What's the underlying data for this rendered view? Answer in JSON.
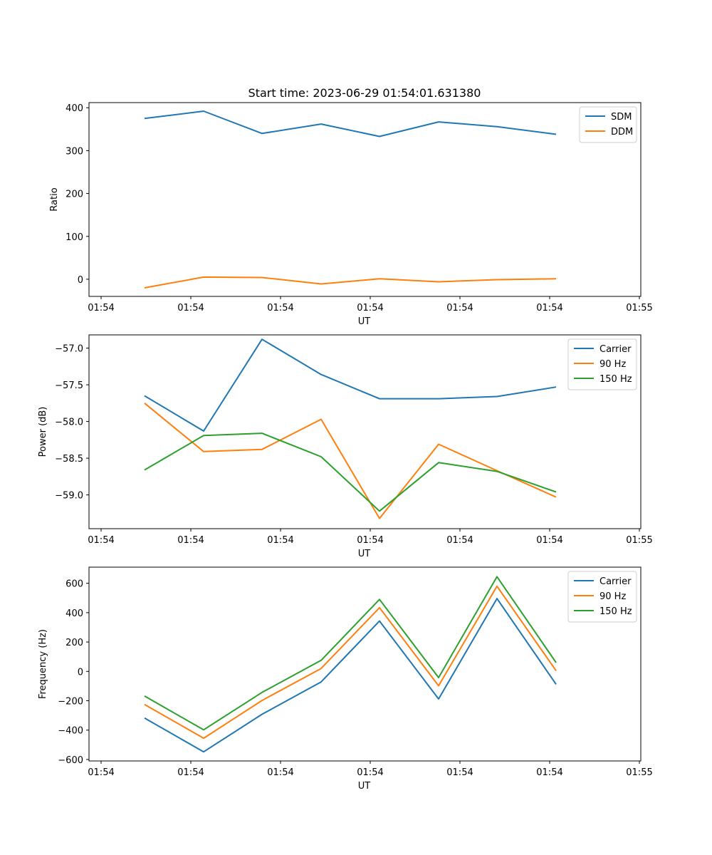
{
  "figure": {
    "title": "Start time: 2023-06-29 01:54:01.631380"
  },
  "chart_data": [
    {
      "type": "line",
      "xlabel": "UT",
      "ylabel": "Ratio",
      "x_tick_labels": [
        "01:54",
        "01:54",
        "01:54",
        "01:54",
        "01:54",
        "01:54",
        "01:55"
      ],
      "y_ticks": [
        0,
        100,
        200,
        300,
        400
      ],
      "ylim": [
        -40,
        412
      ],
      "legend_position": "top-right",
      "grid": false,
      "series": [
        {
          "name": "SDM",
          "color": "#1f77b4",
          "values": [
            375,
            392,
            340,
            362,
            333,
            367,
            356,
            338
          ]
        },
        {
          "name": "DDM",
          "color": "#ff7f0e",
          "values": [
            -20,
            5,
            4,
            -11,
            1,
            -6,
            -1,
            1
          ]
        }
      ]
    },
    {
      "type": "line",
      "xlabel": "UT",
      "ylabel": "Power (dB)",
      "x_tick_labels": [
        "01:54",
        "01:54",
        "01:54",
        "01:54",
        "01:54",
        "01:54",
        "01:55"
      ],
      "y_ticks": [
        -59.0,
        -58.5,
        -58.0,
        -57.5,
        -57.0
      ],
      "y_tick_labels": [
        "−59.0",
        "−58.5",
        "−58.0",
        "−57.5",
        "−57.0"
      ],
      "ylim": [
        -59.46,
        -56.82
      ],
      "legend_position": "top-right",
      "grid": false,
      "series": [
        {
          "name": "Carrier",
          "color": "#1f77b4",
          "values": [
            -57.65,
            -58.13,
            -56.88,
            -57.36,
            -57.69,
            -57.69,
            -57.66,
            -57.53
          ]
        },
        {
          "name": "90 Hz",
          "color": "#ff7f0e",
          "values": [
            -57.75,
            -58.41,
            -58.38,
            -57.97,
            -59.32,
            -58.31,
            -58.67,
            -59.03
          ]
        },
        {
          "name": "150 Hz",
          "color": "#2ca02c",
          "values": [
            -58.66,
            -58.19,
            -58.16,
            -58.48,
            -59.22,
            -58.56,
            -58.68,
            -58.96
          ]
        }
      ]
    },
    {
      "type": "line",
      "xlabel": "UT",
      "ylabel": "Frequency (Hz)",
      "x_tick_labels": [
        "01:54",
        "01:54",
        "01:54",
        "01:54",
        "01:54",
        "01:54",
        "01:55"
      ],
      "y_ticks": [
        -600,
        -400,
        -200,
        0,
        200,
        400,
        600
      ],
      "y_tick_labels": [
        "−600",
        "−400",
        "−200",
        "0",
        "200",
        "400",
        "600"
      ],
      "ylim": [
        -610,
        710
      ],
      "legend_position": "top-right",
      "grid": false,
      "series": [
        {
          "name": "Carrier",
          "color": "#1f77b4",
          "values": [
            -318,
            -548,
            -292,
            -72,
            343,
            -188,
            496,
            -88
          ]
        },
        {
          "name": "90 Hz",
          "color": "#ff7f0e",
          "values": [
            -225,
            -455,
            -198,
            20,
            434,
            -98,
            580,
            5
          ]
        },
        {
          "name": "150 Hz",
          "color": "#2ca02c",
          "values": [
            -168,
            -398,
            -143,
            75,
            490,
            -42,
            645,
            60
          ]
        }
      ]
    }
  ]
}
